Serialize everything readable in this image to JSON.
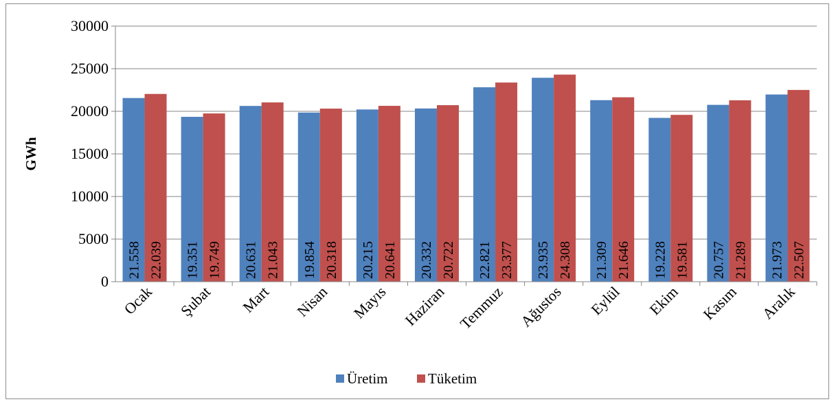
{
  "chart_data": {
    "type": "bar",
    "title": "",
    "xlabel": "",
    "ylabel": "GWh",
    "ylim": [
      0,
      30000
    ],
    "yticks": [
      0,
      5000,
      10000,
      15000,
      20000,
      25000,
      30000
    ],
    "grid": true,
    "legend_position": "bottom",
    "categories": [
      "Ocak",
      "Şubat",
      "Mart",
      "Nisan",
      "Mayıs",
      "Haziran",
      "Temmuz",
      "Ağustos",
      "Eylül",
      "Ekim",
      "Kasım",
      "Aralık"
    ],
    "series": [
      {
        "name": "Üretim",
        "color": "#4f81bd",
        "values": [
          21558,
          19351,
          20631,
          19854,
          20215,
          20332,
          22821,
          23935,
          21309,
          19228,
          20757,
          21973
        ],
        "labels": [
          "21.558",
          "19.351",
          "20.631",
          "19.854",
          "20.215",
          "20.332",
          "22.821",
          "23.935",
          "21.309",
          "19.228",
          "20.757",
          "21.973"
        ]
      },
      {
        "name": "Tüketim",
        "color": "#c0504d",
        "values": [
          22039,
          19749,
          21043,
          20318,
          20641,
          20722,
          23377,
          24308,
          21646,
          19581,
          21289,
          22507
        ],
        "labels": [
          "22.039",
          "19.749",
          "21.043",
          "20.318",
          "20.641",
          "20.722",
          "23.377",
          "24.308",
          "21.646",
          "19.581",
          "21.289",
          "22.507"
        ]
      }
    ]
  }
}
